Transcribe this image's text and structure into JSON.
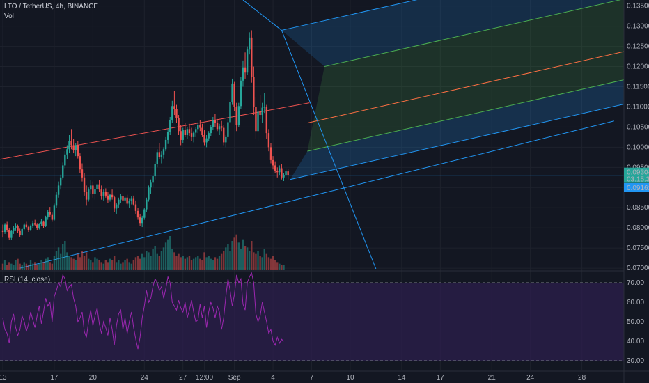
{
  "header": {
    "symbol_line": "LTO / TetherUS, 4h, BINANCE",
    "vol_label": "Vol",
    "rsi_label": "RSI (14, close)"
  },
  "price_axis": {
    "ticks": [
      "0.13500",
      "0.13000",
      "0.12500",
      "0.12000",
      "0.11500",
      "0.11000",
      "0.10500",
      "0.10000",
      "0.09500",
      "0.09000",
      "0.08500",
      "0.08000",
      "0.07500",
      "0.07000"
    ],
    "tick_values": [
      0.135,
      0.13,
      0.125,
      0.12,
      0.115,
      0.11,
      0.105,
      0.1,
      0.095,
      0.09,
      0.085,
      0.08,
      0.075,
      0.07
    ],
    "current_price": "0.09304",
    "current_value": 0.09304,
    "countdown": "03:15:33",
    "low_marker": "0.09161",
    "low_value": 0.09161,
    "ylim": [
      0.0695,
      0.1365
    ]
  },
  "rsi_axis": {
    "ticks": [
      "70.00",
      "60.00",
      "50.00",
      "40.00",
      "30.00"
    ],
    "tick_values": [
      70,
      60,
      50,
      40,
      30
    ],
    "upper_band": 70,
    "lower_band": 30,
    "ylim": [
      25,
      75
    ]
  },
  "time_axis": {
    "labels": [
      "13",
      "17",
      "20",
      "24",
      "27",
      "12:00",
      "Sep",
      "4",
      "7",
      "10",
      "14",
      "17",
      "21",
      "24",
      "28"
    ],
    "bar_index": [
      0,
      24,
      42,
      66,
      84,
      94,
      108,
      126,
      144,
      162,
      186,
      204,
      228,
      246,
      270
    ]
  },
  "colors": {
    "background": "#131722",
    "up": "#26a69a",
    "down": "#ef5350",
    "grid": "#1e222d",
    "rsi_line": "#9c27b0",
    "rsi_fill": "#2a1e4a",
    "pitchfork_blue": "#2196f3",
    "pitchfork_green": "#4caf50",
    "median_line": "#ff7043",
    "axis_bg": "#131722",
    "current_price_bg": "#26a69a",
    "low_marker_bg": "#2196f3"
  },
  "chart_data": [
    {
      "type": "candlestick",
      "title": "LTO / TetherUS, 4h, BINANCE",
      "x": "4h bar index (0 = 13 Aug, 6 bars per day)",
      "ohlc": [
        [
          0.0792,
          0.0808,
          0.0776,
          0.079
        ],
        [
          0.079,
          0.0812,
          0.0785,
          0.0808
        ],
        [
          0.0808,
          0.0815,
          0.079,
          0.0795
        ],
        [
          0.0795,
          0.08,
          0.077,
          0.0775
        ],
        [
          0.0775,
          0.0795,
          0.077,
          0.0792
        ],
        [
          0.0792,
          0.0805,
          0.0785,
          0.08
        ],
        [
          0.08,
          0.0812,
          0.0792,
          0.0805
        ],
        [
          0.0805,
          0.0808,
          0.0788,
          0.0792
        ],
        [
          0.0792,
          0.0798,
          0.0778,
          0.0782
        ],
        [
          0.0782,
          0.08,
          0.078,
          0.0797
        ],
        [
          0.0797,
          0.0812,
          0.0793,
          0.0808
        ],
        [
          0.0808,
          0.0815,
          0.0798,
          0.0802
        ],
        [
          0.0802,
          0.0806,
          0.079,
          0.0795
        ],
        [
          0.0795,
          0.0808,
          0.0792,
          0.0805
        ],
        [
          0.0805,
          0.0818,
          0.08,
          0.0812
        ],
        [
          0.0812,
          0.082,
          0.0805,
          0.0808
        ],
        [
          0.0808,
          0.0812,
          0.0795,
          0.0799
        ],
        [
          0.0799,
          0.0812,
          0.0796,
          0.081
        ],
        [
          0.081,
          0.0822,
          0.0805,
          0.0815
        ],
        [
          0.0815,
          0.0818,
          0.08,
          0.0804
        ],
        [
          0.0804,
          0.083,
          0.0802,
          0.0826
        ],
        [
          0.0826,
          0.0845,
          0.082,
          0.084
        ],
        [
          0.084,
          0.0852,
          0.0828,
          0.0832
        ],
        [
          0.0832,
          0.0838,
          0.0815,
          0.082
        ],
        [
          0.082,
          0.086,
          0.0818,
          0.0855
        ],
        [
          0.0855,
          0.089,
          0.085,
          0.0882
        ],
        [
          0.0882,
          0.0915,
          0.0875,
          0.0905
        ],
        [
          0.0905,
          0.0932,
          0.0895,
          0.0925
        ],
        [
          0.0925,
          0.0962,
          0.092,
          0.0955
        ],
        [
          0.0955,
          0.099,
          0.0948,
          0.0982
        ],
        [
          0.0982,
          0.1005,
          0.097,
          0.0995
        ],
        [
          0.0995,
          0.103,
          0.0985,
          0.1015
        ],
        [
          0.1015,
          0.1045,
          0.0995,
          0.1005
        ],
        [
          0.1005,
          0.102,
          0.0985,
          0.0992
        ],
        [
          0.0992,
          0.101,
          0.0978,
          0.1005
        ],
        [
          0.1005,
          0.1015,
          0.0972,
          0.0978
        ],
        [
          0.0978,
          0.0985,
          0.0935,
          0.0945
        ],
        [
          0.0945,
          0.096,
          0.0915,
          0.0925
        ],
        [
          0.0925,
          0.0935,
          0.088,
          0.089
        ],
        [
          0.089,
          0.0905,
          0.0855,
          0.087
        ],
        [
          0.087,
          0.09,
          0.0865,
          0.0895
        ],
        [
          0.0895,
          0.0918,
          0.0885,
          0.0905
        ],
        [
          0.0905,
          0.0915,
          0.0875,
          0.0885
        ],
        [
          0.0885,
          0.09,
          0.087,
          0.0896
        ],
        [
          0.0896,
          0.0912,
          0.0885,
          0.0908
        ],
        [
          0.0908,
          0.0918,
          0.089,
          0.0895
        ],
        [
          0.0895,
          0.0905,
          0.087,
          0.0878
        ],
        [
          0.0878,
          0.0895,
          0.0868,
          0.089
        ],
        [
          0.089,
          0.0898,
          0.0875,
          0.088
        ],
        [
          0.088,
          0.089,
          0.0862,
          0.087
        ],
        [
          0.087,
          0.0885,
          0.0865,
          0.0882
        ],
        [
          0.0882,
          0.0895,
          0.087,
          0.0876
        ],
        [
          0.0876,
          0.088,
          0.084,
          0.0848
        ],
        [
          0.0848,
          0.0862,
          0.0835,
          0.0858
        ],
        [
          0.0858,
          0.0875,
          0.085,
          0.087
        ],
        [
          0.087,
          0.0885,
          0.0862,
          0.0878
        ],
        [
          0.0878,
          0.089,
          0.0865,
          0.0868
        ],
        [
          0.0868,
          0.088,
          0.086,
          0.0875
        ],
        [
          0.0875,
          0.0882,
          0.0855,
          0.086
        ],
        [
          0.086,
          0.0872,
          0.085,
          0.0866
        ],
        [
          0.0866,
          0.0878,
          0.0858,
          0.0872
        ],
        [
          0.0872,
          0.088,
          0.0855,
          0.0858
        ],
        [
          0.0858,
          0.0868,
          0.0835,
          0.0842
        ],
        [
          0.0842,
          0.085,
          0.082,
          0.0826
        ],
        [
          0.0826,
          0.0835,
          0.0805,
          0.0812
        ],
        [
          0.0812,
          0.083,
          0.0802,
          0.0825
        ],
        [
          0.0825,
          0.085,
          0.082,
          0.0846
        ],
        [
          0.0846,
          0.0875,
          0.084,
          0.087
        ],
        [
          0.087,
          0.0905,
          0.0865,
          0.09
        ],
        [
          0.09,
          0.092,
          0.0885,
          0.0912
        ],
        [
          0.0912,
          0.0935,
          0.09,
          0.0928
        ],
        [
          0.0928,
          0.0965,
          0.092,
          0.0958
        ],
        [
          0.0958,
          0.0995,
          0.095,
          0.0988
        ],
        [
          0.0988,
          0.101,
          0.097,
          0.0975
        ],
        [
          0.0975,
          0.099,
          0.096,
          0.0982
        ],
        [
          0.0982,
          0.1,
          0.0972,
          0.0995
        ],
        [
          0.0995,
          0.1025,
          0.099,
          0.1018
        ],
        [
          0.1018,
          0.1045,
          0.1008,
          0.1038
        ],
        [
          0.1038,
          0.1075,
          0.103,
          0.1068
        ],
        [
          0.1068,
          0.1115,
          0.106,
          0.1102
        ],
        [
          0.1102,
          0.114,
          0.108,
          0.1095
        ],
        [
          0.1095,
          0.1105,
          0.106,
          0.1072
        ],
        [
          0.1072,
          0.108,
          0.103,
          0.104
        ],
        [
          0.104,
          0.1055,
          0.1005,
          0.1018
        ],
        [
          0.1018,
          0.1048,
          0.101,
          0.1042
        ],
        [
          0.1042,
          0.106,
          0.1025,
          0.103
        ],
        [
          0.103,
          0.105,
          0.102,
          0.1045
        ],
        [
          0.1045,
          0.1058,
          0.1028,
          0.1035
        ],
        [
          0.1035,
          0.1048,
          0.1015,
          0.1025
        ],
        [
          0.1025,
          0.104,
          0.1012,
          0.1036
        ],
        [
          0.1036,
          0.105,
          0.1025,
          0.1045
        ],
        [
          0.1045,
          0.1062,
          0.1035,
          0.1055
        ],
        [
          0.1055,
          0.1068,
          0.104,
          0.1048
        ],
        [
          0.1048,
          0.1058,
          0.1025,
          0.103
        ],
        [
          0.103,
          0.1042,
          0.1005,
          0.1012
        ],
        [
          0.1012,
          0.103,
          0.1,
          0.1022
        ],
        [
          0.1022,
          0.104,
          0.1015,
          0.1035
        ],
        [
          0.1035,
          0.1055,
          0.1028,
          0.105
        ],
        [
          0.105,
          0.1075,
          0.1042,
          0.1068
        ],
        [
          0.1068,
          0.1082,
          0.105,
          0.106
        ],
        [
          0.106,
          0.107,
          0.104,
          0.1045
        ],
        [
          0.1045,
          0.1058,
          0.103,
          0.1052
        ],
        [
          0.1052,
          0.1065,
          0.104,
          0.1048
        ],
        [
          0.1048,
          0.1055,
          0.1005,
          0.1012
        ],
        [
          0.1012,
          0.103,
          0.1,
          0.1025
        ],
        [
          0.1025,
          0.107,
          0.102,
          0.1062
        ],
        [
          0.1062,
          0.112,
          0.1055,
          0.1112
        ],
        [
          0.1112,
          0.117,
          0.1105,
          0.1158
        ],
        [
          0.1158,
          0.1162,
          0.109,
          0.11
        ],
        [
          0.11,
          0.111,
          0.104,
          0.1055
        ],
        [
          0.1055,
          0.111,
          0.105,
          0.1102
        ],
        [
          0.1102,
          0.1175,
          0.1095,
          0.1165
        ],
        [
          0.1165,
          0.1215,
          0.115,
          0.1198
        ],
        [
          0.1198,
          0.1235,
          0.117,
          0.1185
        ],
        [
          0.1185,
          0.125,
          0.118,
          0.1242
        ],
        [
          0.1242,
          0.1285,
          0.123,
          0.1272
        ],
        [
          0.1272,
          0.129,
          0.116,
          0.1175
        ],
        [
          0.1175,
          0.12,
          0.108,
          0.11
        ],
        [
          0.11,
          0.1125,
          0.102,
          0.104
        ],
        [
          0.104,
          0.1095,
          0.1015,
          0.1088
        ],
        [
          0.1088,
          0.113,
          0.107,
          0.108
        ],
        [
          0.108,
          0.111,
          0.106,
          0.1098
        ],
        [
          0.1098,
          0.1135,
          0.1085,
          0.11
        ],
        [
          0.11,
          0.1105,
          0.102,
          0.1035
        ],
        [
          0.1035,
          0.1045,
          0.099,
          0.1
        ],
        [
          0.1,
          0.101,
          0.096,
          0.0968
        ],
        [
          0.0968,
          0.0978,
          0.0945,
          0.0955
        ],
        [
          0.0955,
          0.0965,
          0.0935,
          0.0942
        ],
        [
          0.0942,
          0.095,
          0.0925,
          0.0938
        ],
        [
          0.0938,
          0.0955,
          0.093,
          0.0948
        ],
        [
          0.0948,
          0.0958,
          0.092,
          0.0925
        ],
        [
          0.0925,
          0.0935,
          0.0916,
          0.093
        ],
        [
          0.093,
          0.0948,
          0.0922,
          0.094
        ],
        [
          0.094,
          0.0946,
          0.092,
          0.093
        ]
      ]
    },
    {
      "type": "bar",
      "title": "Vol",
      "values": [
        4,
        6,
        3,
        5,
        4,
        3,
        6,
        7,
        4,
        3,
        5,
        4,
        3,
        6,
        4,
        5,
        3,
        4,
        6,
        5,
        7,
        8,
        5,
        4,
        9,
        12,
        14,
        10,
        16,
        18,
        11,
        9,
        8,
        7,
        6,
        10,
        8,
        12,
        9,
        11,
        7,
        6,
        5,
        8,
        7,
        6,
        5,
        4,
        6,
        5,
        7,
        6,
        9,
        5,
        6,
        4,
        5,
        6,
        7,
        5,
        4,
        6,
        8,
        9,
        7,
        10,
        8,
        12,
        11,
        9,
        13,
        15,
        10,
        9,
        12,
        14,
        17,
        19,
        21,
        13,
        11,
        9,
        10,
        8,
        9,
        7,
        8,
        9,
        6,
        7,
        8,
        9,
        7,
        6,
        11,
        8,
        9,
        7,
        6,
        8,
        7,
        9,
        10,
        12,
        14,
        16,
        12,
        18,
        20,
        22,
        17,
        13,
        19,
        15,
        14,
        12,
        18,
        11,
        10,
        12,
        9,
        8,
        13,
        10,
        8,
        7,
        9,
        6,
        5,
        4,
        3,
        3
      ],
      "ylim": [
        0,
        30
      ]
    },
    {
      "type": "line",
      "title": "RSI (14, close)",
      "values": [
        52,
        46,
        44,
        39,
        50,
        54,
        47,
        43,
        46,
        53,
        50,
        45,
        49,
        55,
        51,
        47,
        53,
        58,
        49,
        55,
        62,
        58,
        60,
        50,
        63,
        66,
        70,
        68,
        74,
        72,
        66,
        68,
        69,
        62,
        58,
        50,
        52,
        55,
        45,
        42,
        50,
        56,
        48,
        53,
        57,
        49,
        44,
        50,
        47,
        43,
        52,
        46,
        38,
        48,
        54,
        56,
        46,
        52,
        44,
        50,
        55,
        47,
        41,
        36,
        42,
        52,
        58,
        66,
        60,
        62,
        68,
        72,
        70,
        66,
        68,
        62,
        67,
        73,
        70,
        60,
        58,
        56,
        61,
        57,
        55,
        60,
        52,
        56,
        61,
        55,
        50,
        51,
        59,
        52,
        58,
        47,
        55,
        60,
        57,
        52,
        58,
        55,
        46,
        52,
        63,
        72,
        66,
        58,
        64,
        74,
        70,
        72,
        59,
        56,
        70,
        73,
        75,
        70,
        54,
        50,
        53,
        60,
        55,
        50,
        44,
        46,
        40,
        38,
        42,
        39,
        41,
        40
      ],
      "ylim": [
        25,
        75
      ]
    }
  ]
}
